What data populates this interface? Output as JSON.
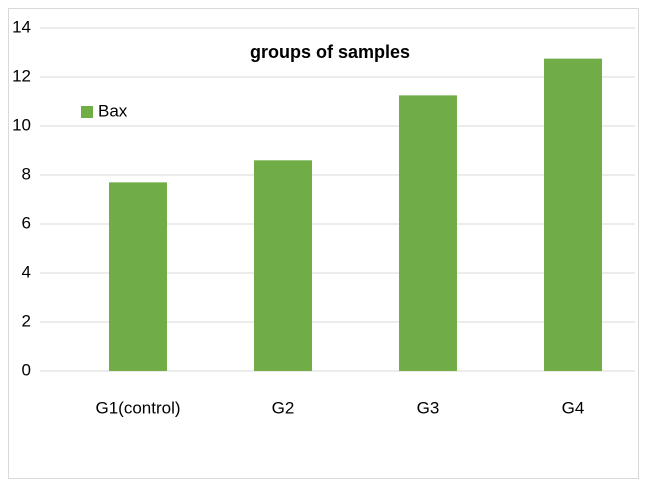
{
  "chart_data": {
    "type": "bar",
    "title": "groups of samples",
    "categories": [
      "G1(control)",
      "G2",
      "G3",
      "G4"
    ],
    "series": [
      {
        "name": "Bax",
        "color": "#70ad47",
        "values": [
          7.7,
          8.6,
          11.25,
          12.75
        ]
      }
    ],
    "ylim": [
      0,
      14
    ],
    "yticks": [
      0,
      2,
      4,
      6,
      8,
      10,
      12,
      14
    ],
    "grid": true,
    "legend": "upper left"
  }
}
